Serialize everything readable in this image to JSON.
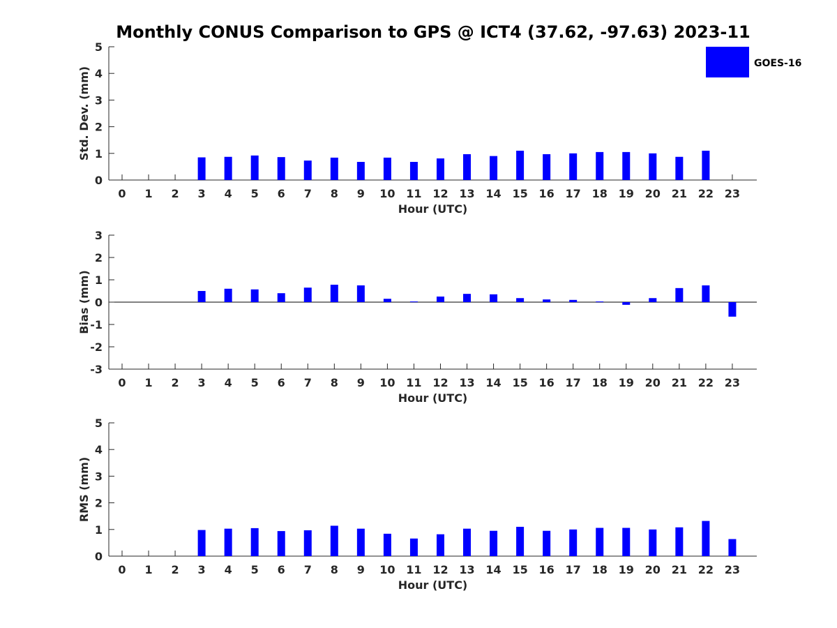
{
  "title": "Monthly CONUS Comparison to GPS @ ICT4 (37.62, -97.63) 2023-11",
  "legend": {
    "label": "GOES-16",
    "color": "#0000ff",
    "placement": "top-right"
  },
  "chart_data": [
    {
      "type": "bar",
      "name": "stddev",
      "xlabel": "Hour (UTC)",
      "ylabel": "Std. Dev. (mm)",
      "ylim": [
        0,
        5
      ],
      "yticks": [
        0,
        1,
        2,
        3,
        4,
        5
      ],
      "categories": [
        "0",
        "1",
        "2",
        "3",
        "4",
        "5",
        "6",
        "7",
        "8",
        "9",
        "10",
        "11",
        "12",
        "13",
        "14",
        "15",
        "16",
        "17",
        "18",
        "19",
        "20",
        "21",
        "22",
        "23"
      ],
      "series": [
        {
          "name": "GOES-16",
          "values": [
            null,
            null,
            null,
            0.85,
            0.87,
            0.92,
            0.86,
            0.73,
            0.84,
            0.68,
            0.84,
            0.68,
            0.81,
            0.97,
            0.9,
            1.1,
            0.97,
            1.0,
            1.05,
            1.05,
            1.0,
            0.87,
            1.1,
            null
          ]
        }
      ]
    },
    {
      "type": "bar",
      "name": "bias",
      "xlabel": "Hour (UTC)",
      "ylabel": "Bias (mm)",
      "ylim": [
        -3,
        3
      ],
      "yticks": [
        -3,
        -2,
        -1,
        0,
        1,
        2,
        3
      ],
      "categories": [
        "0",
        "1",
        "2",
        "3",
        "4",
        "5",
        "6",
        "7",
        "8",
        "9",
        "10",
        "11",
        "12",
        "13",
        "14",
        "15",
        "16",
        "17",
        "18",
        "19",
        "20",
        "21",
        "22",
        "23"
      ],
      "series": [
        {
          "name": "GOES-16",
          "values": [
            null,
            null,
            null,
            0.5,
            0.6,
            0.57,
            0.4,
            0.65,
            0.78,
            0.75,
            0.15,
            0.03,
            0.25,
            0.37,
            0.35,
            0.18,
            0.12,
            0.1,
            0.03,
            -0.12,
            0.18,
            0.63,
            0.75,
            -0.65
          ]
        }
      ]
    },
    {
      "type": "bar",
      "name": "rms",
      "xlabel": "Hour (UTC)",
      "ylabel": "RMS (mm)",
      "ylim": [
        0,
        5
      ],
      "yticks": [
        0,
        1,
        2,
        3,
        4,
        5
      ],
      "categories": [
        "0",
        "1",
        "2",
        "3",
        "4",
        "5",
        "6",
        "7",
        "8",
        "9",
        "10",
        "11",
        "12",
        "13",
        "14",
        "15",
        "16",
        "17",
        "18",
        "19",
        "20",
        "21",
        "22",
        "23"
      ],
      "series": [
        {
          "name": "GOES-16",
          "values": [
            null,
            null,
            null,
            0.98,
            1.03,
            1.05,
            0.94,
            0.97,
            1.14,
            1.03,
            0.84,
            0.66,
            0.82,
            1.03,
            0.95,
            1.1,
            0.95,
            1.0,
            1.06,
            1.06,
            1.0,
            1.08,
            1.32,
            0.64
          ]
        }
      ]
    }
  ]
}
